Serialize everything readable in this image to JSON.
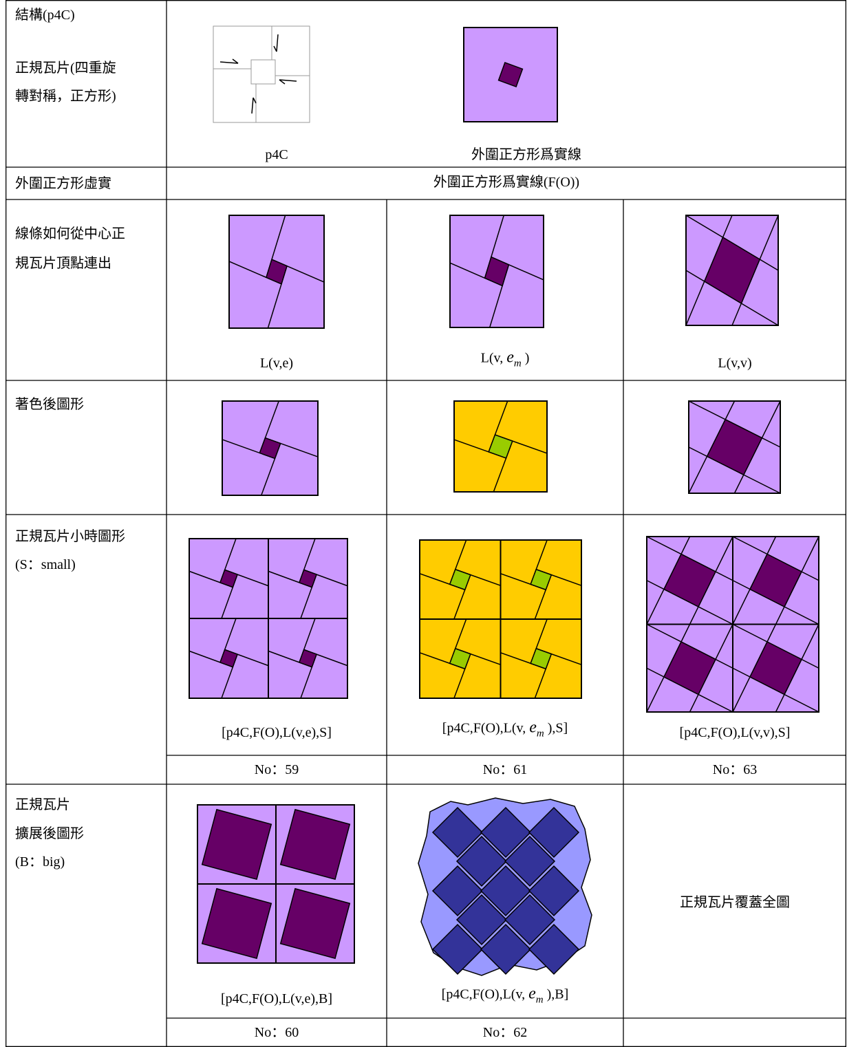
{
  "table": {
    "structure": {
      "label_lines": [
        "結構(p4C)",
        "正規瓦片(四重旋",
        "轉對稱，正方形)"
      ],
      "captions": [
        "p4C",
        "外圍正方形爲實線"
      ]
    },
    "outline": {
      "label": "外圍正方形虛實",
      "value": "外圍正方形爲實線(F(O))"
    },
    "lines": {
      "label_lines": [
        "線條如何從中心正",
        "規瓦片頂點連出"
      ],
      "captions": [
        "L(v,e)",
        {
          "prefix": "L(v, ",
          "var": "e",
          "sub": "m",
          "suffix": " )"
        },
        "L(v,v)"
      ]
    },
    "colored": {
      "label": "著色後圖形"
    },
    "small": {
      "label_lines": [
        "正規瓦片小時圖形",
        "(S：small)"
      ],
      "captions": [
        "[p4C,F(O),L(v,e),S]",
        {
          "prefix": "[p4C,F(O),L(v, ",
          "var": "e",
          "sub": "m",
          "suffix": " ),S]"
        },
        "[p4C,F(O),L(v,v),S]"
      ],
      "numbers": [
        "No：59",
        "No：61",
        "No：63"
      ]
    },
    "big": {
      "label_lines": [
        "正規瓦片",
        "擴展後圖形",
        "(B：big)"
      ],
      "captions": [
        "[p4C,F(O),L(v,e),B]",
        {
          "prefix": "[p4C,F(O),L(v, ",
          "var": "e",
          "sub": "m",
          "suffix": " ),B]"
        }
      ],
      "note": "正規瓦片覆蓋全圖",
      "numbers": [
        "No：60",
        "No：62"
      ]
    }
  }
}
